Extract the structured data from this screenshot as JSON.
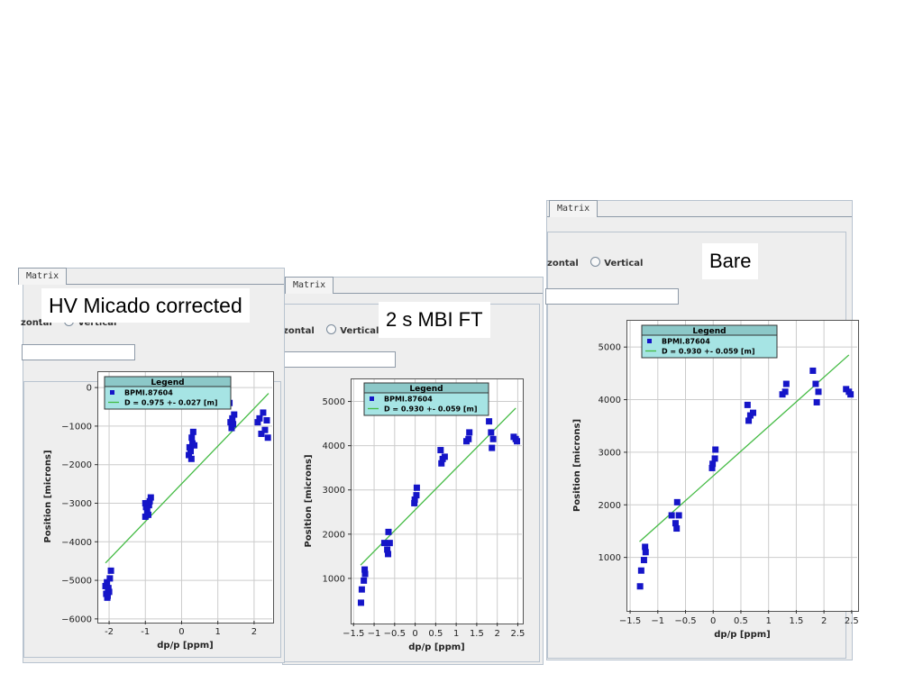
{
  "panels": [
    {
      "tab_label": "Matrix",
      "radio_visible_text": "zontal",
      "radio_vertical_label": "Vertical",
      "caption": "HV Micado corrected",
      "chart_data": {
        "type": "scatter",
        "xlabel": "dp/p [ppm]",
        "ylabel": "Position [microns]",
        "xlim": [
          -2.3,
          2.5
        ],
        "ylim": [
          -6050,
          400
        ],
        "xticks": [
          -2,
          -1,
          0,
          1,
          2
        ],
        "yticks": [
          0,
          -1000,
          -2000,
          -3000,
          -4000,
          -5000,
          -6000
        ],
        "ytick_labels": [
          "0",
          "−1000",
          "−2000",
          "−3000",
          "−4000",
          "−5000",
          "−6000"
        ],
        "grid": true,
        "legend": {
          "title": "Legend",
          "position": "top-left",
          "entries": [
            {
              "label": "BPMI.87604",
              "marker": "square",
              "color": "#1515c8"
            },
            {
              "label": "D = 0.975 +- 0.027 [m]",
              "marker": "line",
              "color": "#44bb44"
            }
          ]
        },
        "series": [
          {
            "name": "BPMI.87604",
            "style": "points",
            "points": [
              [
                -2.05,
                -5450
              ],
              [
                -2.08,
                -5350
              ],
              [
                -2.03,
                -5250
              ],
              [
                -2.1,
                -5150
              ],
              [
                -2.0,
                -5300
              ],
              [
                -2.06,
                -5050
              ],
              [
                -1.98,
                -4950
              ],
              [
                -2.02,
                -5200
              ],
              [
                -1.95,
                -4750
              ],
              [
                -2.04,
                -5400
              ],
              [
                -1.0,
                -3350
              ],
              [
                -0.95,
                -3200
              ],
              [
                -0.9,
                -3050
              ],
              [
                -0.98,
                -3100
              ],
              [
                -0.85,
                -2850
              ],
              [
                -0.92,
                -3300
              ],
              [
                -0.88,
                -2950
              ],
              [
                -1.0,
                -3000
              ],
              [
                0.2,
                -1750
              ],
              [
                0.25,
                -1650
              ],
              [
                0.3,
                -1450
              ],
              [
                0.28,
                -1300
              ],
              [
                0.32,
                -1150
              ],
              [
                0.22,
                -1550
              ],
              [
                0.27,
                -1850
              ],
              [
                0.35,
                -1500
              ],
              [
                1.35,
                -900
              ],
              [
                1.4,
                -800
              ],
              [
                1.45,
                -700
              ],
              [
                1.38,
                -1050
              ],
              [
                1.32,
                -400
              ],
              [
                1.42,
                -950
              ],
              [
                2.1,
                -900
              ],
              [
                2.2,
                -1200
              ],
              [
                2.3,
                -1100
              ],
              [
                2.35,
                -850
              ],
              [
                2.25,
                -650
              ],
              [
                2.38,
                -1300
              ],
              [
                2.15,
                -800
              ]
            ]
          },
          {
            "name": "D = 0.975 +- 0.027 [m]",
            "style": "line",
            "points": [
              [
                -2.1,
                -4550
              ],
              [
                2.4,
                -150
              ]
            ]
          }
        ]
      }
    },
    {
      "tab_label": "Matrix",
      "radio_visible_text": "zontal",
      "radio_vertical_label": "Vertical",
      "caption": "2 s MBI FT",
      "chart_data": {
        "type": "scatter",
        "xlabel": "dp/p [ppm]",
        "ylabel": "Position [microns]",
        "xlim": [
          -1.55,
          2.6
        ],
        "ylim": [
          0,
          5500
        ],
        "xticks": [
          -1.5,
          -1,
          -0.5,
          0,
          0.5,
          1,
          1.5,
          2,
          2.5
        ],
        "xtick_labels": [
          "−1.5",
          "−1",
          "−0.5",
          "0",
          "0.5",
          "1",
          "1.5",
          "2",
          "2.5"
        ],
        "yticks": [
          1000,
          2000,
          3000,
          4000,
          5000
        ],
        "grid": true,
        "legend": {
          "title": "Legend",
          "position": "top-left",
          "entries": [
            {
              "label": "BPMI.87604",
              "marker": "square",
              "color": "#1515c8"
            },
            {
              "label": "D = 0.930 +- 0.059 [m]",
              "marker": "line",
              "color": "#44bb44"
            }
          ]
        },
        "series": [
          {
            "name": "BPMI.87604",
            "style": "points",
            "points": [
              [
                -1.32,
                450
              ],
              [
                -1.3,
                750
              ],
              [
                -1.25,
                950
              ],
              [
                -1.22,
                1100
              ],
              [
                -1.23,
                1200
              ],
              [
                -0.75,
                1800
              ],
              [
                -0.68,
                1650
              ],
              [
                -0.66,
                1550
              ],
              [
                -0.65,
                2050
              ],
              [
                -0.62,
                1800
              ],
              [
                -0.02,
                2700
              ],
              [
                -0.01,
                2780
              ],
              [
                0.03,
                2880
              ],
              [
                0.04,
                3050
              ],
              [
                0.62,
                3900
              ],
              [
                0.67,
                3700
              ],
              [
                0.64,
                3600
              ],
              [
                0.72,
                3750
              ],
              [
                1.25,
                4100
              ],
              [
                1.3,
                4150
              ],
              [
                1.32,
                4300
              ],
              [
                1.8,
                4550
              ],
              [
                1.85,
                4300
              ],
              [
                1.87,
                3950
              ],
              [
                1.9,
                4150
              ],
              [
                2.4,
                4200
              ],
              [
                2.45,
                4150
              ],
              [
                2.48,
                4100
              ]
            ]
          },
          {
            "name": "D = 0.930 +- 0.059 [m]",
            "style": "line",
            "points": [
              [
                -1.33,
                1300
              ],
              [
                2.45,
                4850
              ]
            ]
          }
        ]
      }
    },
    {
      "tab_label": "Matrix",
      "radio_visible_text": "zontal",
      "radio_vertical_label": "Vertical",
      "caption": "Bare",
      "chart_data": {
        "type": "scatter",
        "xlabel": "dp/p [ppm]",
        "ylabel": "Position [microns]",
        "xlim": [
          -1.55,
          2.6
        ],
        "ylim": [
          0,
          5500
        ],
        "xticks": [
          -1.5,
          -1,
          -0.5,
          0,
          0.5,
          1,
          1.5,
          2,
          2.5
        ],
        "xtick_labels": [
          "−1.5",
          "−1",
          "−0.5",
          "0",
          "0.5",
          "1",
          "1.5",
          "2",
          "2.5"
        ],
        "yticks": [
          1000,
          2000,
          3000,
          4000,
          5000
        ],
        "grid": true,
        "legend": {
          "title": "Legend",
          "position": "top-left",
          "entries": [
            {
              "label": "BPMI.87604",
              "marker": "square",
              "color": "#1515c8"
            },
            {
              "label": "D = 0.930 +- 0.059 [m]",
              "marker": "line",
              "color": "#44bb44"
            }
          ]
        },
        "series": [
          {
            "name": "BPMI.87604",
            "style": "points",
            "points": [
              [
                -1.32,
                450
              ],
              [
                -1.3,
                750
              ],
              [
                -1.25,
                950
              ],
              [
                -1.22,
                1100
              ],
              [
                -1.23,
                1200
              ],
              [
                -0.75,
                1800
              ],
              [
                -0.68,
                1650
              ],
              [
                -0.66,
                1550
              ],
              [
                -0.65,
                2050
              ],
              [
                -0.62,
                1800
              ],
              [
                -0.02,
                2700
              ],
              [
                -0.01,
                2780
              ],
              [
                0.03,
                2880
              ],
              [
                0.04,
                3050
              ],
              [
                0.62,
                3900
              ],
              [
                0.67,
                3700
              ],
              [
                0.64,
                3600
              ],
              [
                0.72,
                3750
              ],
              [
                1.25,
                4100
              ],
              [
                1.3,
                4150
              ],
              [
                1.32,
                4300
              ],
              [
                1.8,
                4550
              ],
              [
                1.85,
                4300
              ],
              [
                1.87,
                3950
              ],
              [
                1.9,
                4150
              ],
              [
                2.4,
                4200
              ],
              [
                2.45,
                4150
              ],
              [
                2.48,
                4100
              ]
            ]
          },
          {
            "name": "D = 0.930 +- 0.059 [m]",
            "style": "line",
            "points": [
              [
                -1.33,
                1300
              ],
              [
                2.45,
                4850
              ]
            ]
          }
        ]
      }
    }
  ],
  "colors": {
    "points": "#1515c8",
    "fit": "#44bb44",
    "legend_bg": "#a6e4e4",
    "legend_title_bg": "#8cc8c8",
    "grid": "#cccccc"
  }
}
